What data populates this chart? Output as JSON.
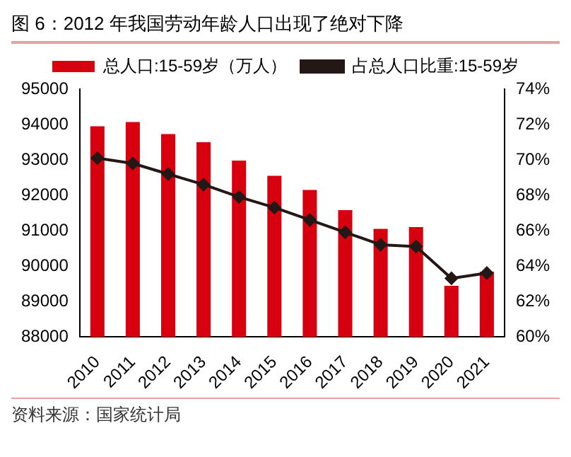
{
  "chart_data": {
    "type": "bar",
    "title": "图 6：2012 年我国劳动年龄人口出现了绝对下降",
    "categories": [
      "2010",
      "2011",
      "2012",
      "2013",
      "2014",
      "2015",
      "2016",
      "2017",
      "2018",
      "2019",
      "2020",
      "2021"
    ],
    "series": [
      {
        "name": "总人口:15-59岁（万人）",
        "color": "#d7000f",
        "values": [
          93950,
          94070,
          93730,
          93500,
          92980,
          92550,
          92150,
          91580,
          91050,
          91100,
          89440,
          89840
        ]
      },
      {
        "name": "占总人口比重:15-59岁",
        "type": "line",
        "axis": "y2",
        "color": "#231815",
        "marker": "diamond",
        "values": [
          70.1,
          69.8,
          69.2,
          68.6,
          67.9,
          67.3,
          66.6,
          65.9,
          65.2,
          65.1,
          63.3,
          63.6
        ]
      }
    ],
    "ylim": [
      88000,
      95000
    ],
    "yticks": [
      88000,
      89000,
      90000,
      91000,
      92000,
      93000,
      94000,
      95000
    ],
    "y2lim": [
      60,
      74
    ],
    "y2ticks": [
      {
        "value": 60,
        "label": "60%"
      },
      {
        "value": 62,
        "label": "62%"
      },
      {
        "value": 64,
        "label": "64%"
      },
      {
        "value": 66,
        "label": "66%"
      },
      {
        "value": 68,
        "label": "68%"
      },
      {
        "value": 70,
        "label": "70%"
      },
      {
        "value": 72,
        "label": "72%"
      },
      {
        "value": 74,
        "label": "74%"
      }
    ],
    "legend": "top",
    "grid": false,
    "annotations": [
      "资料来源：国家统计局"
    ]
  }
}
